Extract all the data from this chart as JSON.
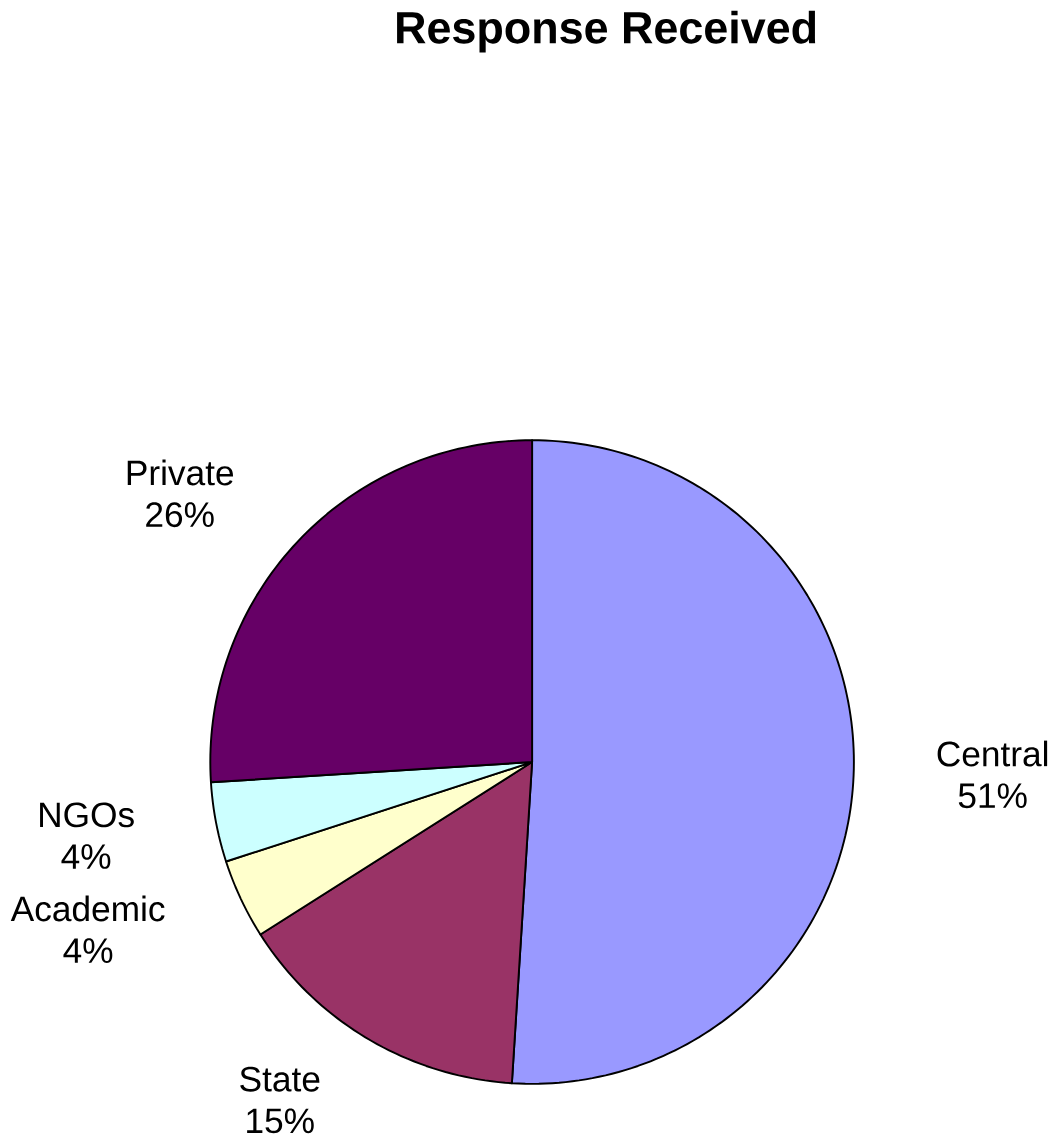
{
  "chart_data": {
    "type": "pie",
    "title": "Response Received",
    "categories": [
      "Central",
      "State",
      "Academic",
      "NGOs",
      "Private"
    ],
    "values": [
      51,
      15,
      4,
      4,
      26
    ],
    "value_labels": [
      "51%",
      "15%",
      "4%",
      "4%",
      "26%"
    ],
    "colors": [
      "#9999ff",
      "#993366",
      "#ffffcc",
      "#ccffff",
      "#660066"
    ]
  }
}
